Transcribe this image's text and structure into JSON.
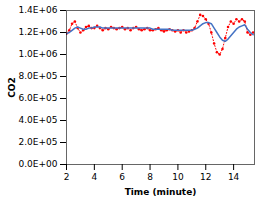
{
  "chart_data": {
    "type": "line",
    "xlabel": "Time (minute)",
    "ylabel": "CO2",
    "xlim": [
      2,
      15.5
    ],
    "ylim": [
      0,
      1400000
    ],
    "xticks": [
      2,
      4,
      6,
      8,
      10,
      12,
      14
    ],
    "yticks": [
      {
        "value": 0,
        "label": "0.0E+00"
      },
      {
        "value": 200000,
        "label": "2.0E+05"
      },
      {
        "value": 400000,
        "label": "4.0E+05"
      },
      {
        "value": 600000,
        "label": "6.0E+05"
      },
      {
        "value": 800000,
        "label": "8.0E+05"
      },
      {
        "value": 1000000,
        "label": "1.0E+06"
      },
      {
        "value": 1200000,
        "label": "1.2E+06"
      },
      {
        "value": 1400000,
        "label": "1.4E+06"
      }
    ],
    "x": [
      2,
      2.2,
      2.4,
      2.6,
      2.8,
      3.0,
      3.2,
      3.4,
      3.6,
      3.8,
      4.0,
      4.2,
      4.4,
      4.6,
      4.8,
      5.0,
      5.2,
      5.4,
      5.6,
      5.8,
      6.0,
      6.2,
      6.4,
      6.6,
      6.8,
      7.0,
      7.2,
      7.4,
      7.6,
      7.8,
      8.0,
      8.2,
      8.4,
      8.6,
      8.8,
      9.0,
      9.2,
      9.4,
      9.6,
      9.8,
      10.0,
      10.2,
      10.4,
      10.6,
      10.8,
      11.0,
      11.2,
      11.4,
      11.6,
      11.8,
      12.0,
      12.2,
      12.4,
      12.6,
      12.8,
      13.0,
      13.2,
      13.4,
      13.6,
      13.8,
      14.0,
      14.2,
      14.4,
      14.6,
      14.8,
      15.0,
      15.2,
      15.4
    ],
    "series": [
      {
        "color": "#FF0000",
        "line_style": "dotted",
        "marker": "dot",
        "values": [
          1190000,
          1220000,
          1280000,
          1300000,
          1240000,
          1200000,
          1220000,
          1250000,
          1260000,
          1240000,
          1240000,
          1260000,
          1240000,
          1220000,
          1240000,
          1230000,
          1250000,
          1240000,
          1230000,
          1240000,
          1250000,
          1230000,
          1240000,
          1220000,
          1240000,
          1250000,
          1230000,
          1220000,
          1230000,
          1240000,
          1220000,
          1220000,
          1230000,
          1240000,
          1220000,
          1210000,
          1220000,
          1230000,
          1220000,
          1210000,
          1220000,
          1200000,
          1220000,
          1200000,
          1210000,
          1220000,
          1240000,
          1300000,
          1360000,
          1350000,
          1320000,
          1280000,
          1200000,
          1100000,
          1020000,
          1000000,
          1050000,
          1150000,
          1250000,
          1300000,
          1280000,
          1320000,
          1300000,
          1320000,
          1300000,
          1200000,
          1180000,
          1200000
        ]
      },
      {
        "color": "#4472C4",
        "line_style": "solid",
        "values": [
          1190000,
          1200000,
          1220000,
          1240000,
          1250000,
          1240000,
          1230000,
          1230000,
          1240000,
          1240000,
          1250000,
          1250000,
          1250000,
          1240000,
          1240000,
          1240000,
          1240000,
          1240000,
          1240000,
          1240000,
          1240000,
          1240000,
          1240000,
          1240000,
          1240000,
          1240000,
          1240000,
          1240000,
          1240000,
          1240000,
          1240000,
          1230000,
          1230000,
          1230000,
          1230000,
          1230000,
          1230000,
          1230000,
          1220000,
          1220000,
          1220000,
          1220000,
          1220000,
          1220000,
          1220000,
          1220000,
          1230000,
          1240000,
          1260000,
          1280000,
          1290000,
          1290000,
          1280000,
          1240000,
          1200000,
          1160000,
          1130000,
          1120000,
          1140000,
          1170000,
          1200000,
          1230000,
          1250000,
          1260000,
          1270000,
          1230000,
          1200000,
          1180000
        ]
      }
    ]
  }
}
